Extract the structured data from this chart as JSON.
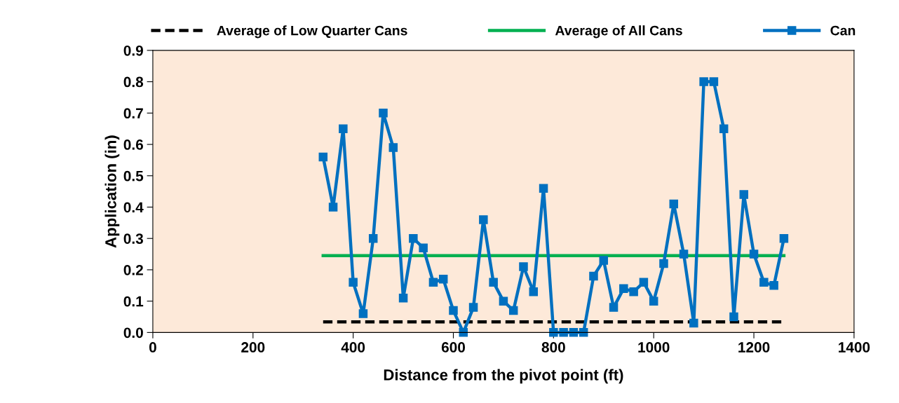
{
  "chart_data": {
    "type": "line",
    "xlabel": "Distance from the pivot point (ft)",
    "ylabel": "Application (in)",
    "xlim": [
      0,
      1400
    ],
    "xticks": [
      0,
      200,
      400,
      600,
      800,
      1000,
      1200,
      1400
    ],
    "ylim": [
      0,
      0.9
    ],
    "yticks": [
      {
        "value": 0,
        "label": "0.0"
      },
      0.1,
      0.2,
      0.3,
      0.4,
      0.5,
      0.6,
      0.7,
      0.8,
      0.9
    ],
    "grid": false,
    "legend": "top",
    "series": [
      {
        "name": "Average of Low Quarter Cans",
        "color": "#000000",
        "line_style": "dashed",
        "marker": "none",
        "x": [
          340,
          1260
        ],
        "values": [
          0.034,
          0.034
        ]
      },
      {
        "name": "Average of All Cans",
        "color": "#00b050",
        "line_style": "solid",
        "marker": "none",
        "x": [
          340,
          1260
        ],
        "values": [
          0.245,
          0.245
        ]
      },
      {
        "name": "Can",
        "color": "#0070c0",
        "line_style": "solid",
        "marker": "square",
        "x": [
          340,
          360,
          380,
          400,
          420,
          440,
          460,
          480,
          500,
          520,
          540,
          560,
          580,
          600,
          620,
          640,
          660,
          680,
          700,
          720,
          740,
          760,
          780,
          800,
          820,
          840,
          860,
          880,
          900,
          920,
          940,
          960,
          980,
          1000,
          1020,
          1040,
          1060,
          1080,
          1100,
          1120,
          1140,
          1160,
          1180,
          1200,
          1220,
          1240,
          1260
        ],
        "values": [
          0.56,
          0.4,
          0.65,
          0.16,
          0.06,
          0.3,
          0.7,
          0.59,
          0.11,
          0.3,
          0.27,
          0.16,
          0.17,
          0.07,
          0.0,
          0.08,
          0.36,
          0.16,
          0.1,
          0.07,
          0.21,
          0.13,
          0.46,
          0,
          0,
          0,
          0,
          0.18,
          0.23,
          0.08,
          0.14,
          0.13,
          0.16,
          0.1,
          0.22,
          0.41,
          0.25,
          0.03,
          0.8,
          0.8,
          0.65,
          0.05,
          0.44,
          0.25,
          0.16,
          0.15,
          0.3
        ]
      }
    ]
  }
}
